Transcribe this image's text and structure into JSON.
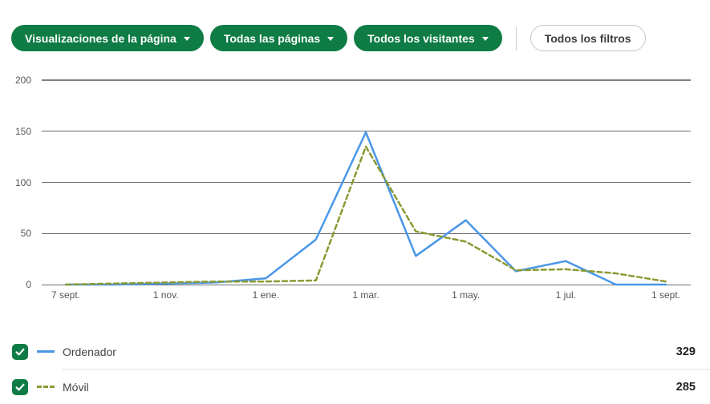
{
  "colors": {
    "pill_green": "#0e7c44",
    "line_blue": "#4a97e8",
    "line_olive": "#8a9a33",
    "grid_gray": "#6b6d71"
  },
  "filter_bar": {
    "metric_dropdown": "Visualizaciones de la página",
    "pages_dropdown": "Todas las páginas",
    "visitors_dropdown": "Todos los visitantes",
    "all_filters_button": "Todos los filtros"
  },
  "chart_data": {
    "type": "line",
    "ylim": [
      0,
      200
    ],
    "y_ticks": [
      0,
      50,
      100,
      150,
      200
    ],
    "x_tick_labels": [
      "7 sept.",
      "1 nov.",
      "1 ene.",
      "1 mar.",
      "1 may.",
      "1 jul.",
      "1 sept."
    ],
    "x_tick_point_indices": [
      0,
      2,
      4,
      6,
      8,
      10,
      12
    ],
    "grid": true,
    "legend_position": "bottom",
    "series": [
      {
        "name": "Ordenador",
        "color": "#4a97e8",
        "line_style": "solid",
        "checked": true,
        "values": [
          0,
          0,
          1,
          2,
          6,
          44,
          149,
          28,
          63,
          13,
          23,
          0,
          0
        ],
        "total": "329"
      },
      {
        "name": "Móvil",
        "color": "#8a9a33",
        "line_style": "dashed",
        "checked": true,
        "values": [
          0,
          1,
          2,
          3,
          3,
          4,
          135,
          52,
          42,
          14,
          15,
          11,
          3
        ],
        "total": "285"
      }
    ]
  }
}
